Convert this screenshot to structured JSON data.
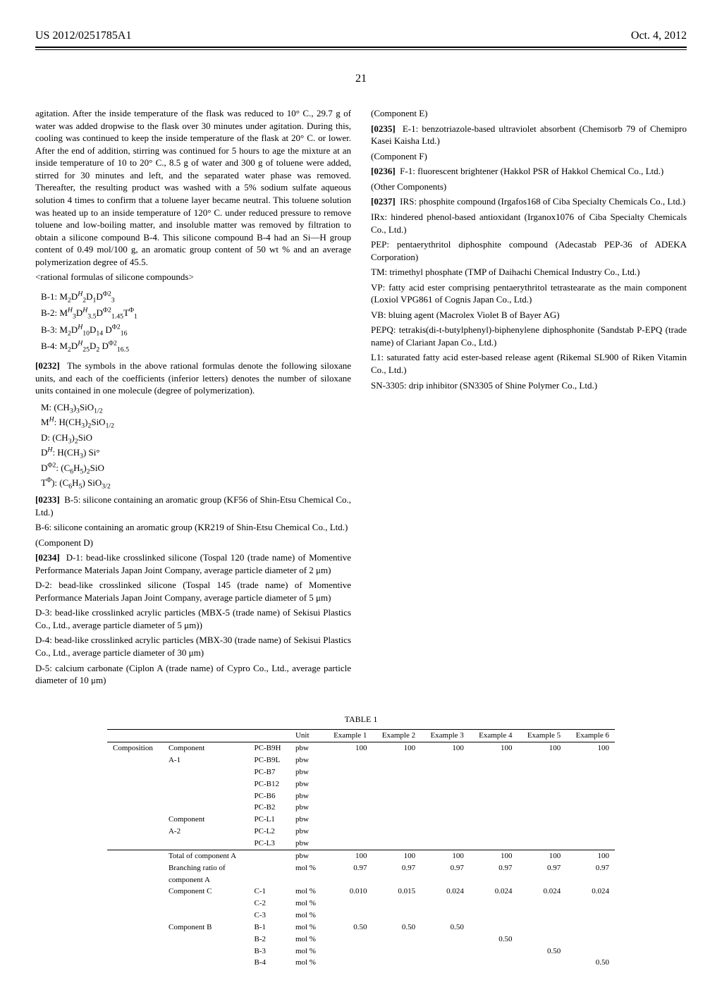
{
  "header": {
    "left": "US 2012/0251785A1",
    "right": "Oct. 4, 2012"
  },
  "page_number": "21",
  "col1": {
    "p1": "agitation. After the inside temperature of the flask was reduced to 10° C., 29.7 g of water was added dropwise to the flask over 30 minutes under agitation. During this, cooling was continued to keep the inside temperature of the flask at 20° C. or lower. After the end of addition, stirring was continued for 5 hours to age the mixture at an inside temperature of 10 to 20° C., 8.5 g of water and 300 g of toluene were added, stirred for 30 minutes and left, and the separated water phase was removed. Thereafter, the resulting product was washed with a 5% sodium sulfate aqueous solution 4 times to confirm that a toluene layer became neutral. This toluene solution was heated up to an inside temperature of 120° C. under reduced pressure to remove toluene and low-boiling matter, and insoluble matter was removed by filtration to obtain a silicone compound B-4. This silicone compound B-4 had an Si—H group content of 0.49 mol/100 g, an aromatic group content of 50 wt % and an average polymerization degree of 45.5.",
    "rational_head": "<rational formulas of silicone compounds>",
    "para32_num": "[0232]",
    "para32": "The symbols in the above rational formulas denote the following siloxane units, and each of the coefficients (inferior letters) denotes the number of siloxane units contained in one molecule (degree of polymerization)."
  },
  "col2": {
    "para33_num": "[0233]",
    "para33a": "B-5: silicone containing an aromatic group (KF56 of Shin-Etsu Chemical Co., Ltd.)",
    "para33b": "B-6: silicone containing an aromatic group (KR219 of Shin-Etsu Chemical Co., Ltd.)",
    "componentD_head": "(Component D)",
    "para34_num": "[0234]",
    "para34a": "D-1: bead-like crosslinked silicone (Tospal 120 (trade name) of Momentive Performance Materials Japan Joint Company, average particle diameter of 2 μm)",
    "para34b": "D-2: bead-like crosslinked silicone (Tospal 145 (trade name) of Momentive Performance Materials Japan Joint Company, average particle diameter of 5 μm)",
    "para34c": "D-3: bead-like crosslinked acrylic particles (MBX-5 (trade name) of Sekisui Plastics Co., Ltd., average particle diameter of 5 μm))",
    "para34d": "D-4: bead-like crosslinked acrylic particles (MBX-30 (trade name) of Sekisui Plastics Co., Ltd., average particle diameter of 30 μm)",
    "para34e": "D-5: calcium carbonate (Ciplon A (trade name) of Cypro Co., Ltd., average particle diameter of 10 μm)",
    "componentE_head": "(Component E)",
    "para35_num": "[0235]",
    "para35": "E-1: benzotriazole-based ultraviolet absorbent (Chemisorb 79 of Chemipro Kasei Kaisha Ltd.)",
    "componentF_head": "(Component F)",
    "para36_num": "[0236]",
    "para36": "F-1: fluorescent brightener (Hakkol PSR of Hakkol Chemical Co., Ltd.)",
    "other_head": "(Other Components)",
    "para37_num": "[0237]",
    "para37a": "IRS: phosphite compound (Irgafos168 of Ciba Specialty Chemicals Co., Ltd.)",
    "para37b": "IRx: hindered phenol-based antioxidant (Irganox1076 of Ciba Specialty Chemicals Co., Ltd.)",
    "para37c": "PEP: pentaerythritol diphosphite compound (Adecastab PEP-36 of ADEKA Corporation)",
    "para37d": "TM: trimethyl phosphate (TMP of Daihachi Chemical Industry Co., Ltd.)",
    "para37e": "VP: fatty acid ester comprising pentaerythritol tetrastearate as the main component (Loxiol VPG861 of Cognis Japan Co., Ltd.)",
    "para37f": "VB: bluing agent (Macrolex Violet B of Bayer AG)",
    "para37g": "PEPQ: tetrakis(di-t-butylphenyl)-biphenylene diphosphonite (Sandstab P-EPQ (trade name) of Clariant Japan Co., Ltd.)",
    "para37h": "L1: saturated fatty acid ester-based release agent (Rikemal SL900 of Riken Vitamin Co., Ltd.)",
    "para37i": "SN-3305: drip inhibitor (SN3305 of Shine Polymer Co., Ltd.)"
  },
  "table": {
    "caption": "TABLE 1",
    "unit_col": "Unit",
    "ex_cols": [
      "Example 1",
      "Example 2",
      "Example 3",
      "Example 4",
      "Example 5",
      "Example 6"
    ],
    "rows": [
      {
        "a": "Composition",
        "b": "Component",
        "c": "PC-B9H",
        "u": "pbw",
        "v": [
          "100",
          "100",
          "100",
          "100",
          "100",
          "100"
        ]
      },
      {
        "a": "",
        "b": "A-1",
        "c": "PC-B9L",
        "u": "pbw",
        "v": [
          "",
          "",
          "",
          "",
          "",
          ""
        ]
      },
      {
        "a": "",
        "b": "",
        "c": "PC-B7",
        "u": "pbw",
        "v": [
          "",
          "",
          "",
          "",
          "",
          ""
        ]
      },
      {
        "a": "",
        "b": "",
        "c": "PC-B12",
        "u": "pbw",
        "v": [
          "",
          "",
          "",
          "",
          "",
          ""
        ]
      },
      {
        "a": "",
        "b": "",
        "c": "PC-B6",
        "u": "pbw",
        "v": [
          "",
          "",
          "",
          "",
          "",
          ""
        ]
      },
      {
        "a": "",
        "b": "",
        "c": "PC-B2",
        "u": "pbw",
        "v": [
          "",
          "",
          "",
          "",
          "",
          ""
        ]
      },
      {
        "a": "",
        "b": "Component",
        "c": "PC-L1",
        "u": "pbw",
        "v": [
          "",
          "",
          "",
          "",
          "",
          ""
        ]
      },
      {
        "a": "",
        "b": "A-2",
        "c": "PC-L2",
        "u": "pbw",
        "v": [
          "",
          "",
          "",
          "",
          "",
          ""
        ]
      },
      {
        "a": "",
        "b": "",
        "c": "PC-L3",
        "u": "pbw",
        "v": [
          "",
          "",
          "",
          "",
          "",
          ""
        ]
      }
    ],
    "total_row": {
      "label": "Total of component A",
      "u": "pbw",
      "v": [
        "100",
        "100",
        "100",
        "100",
        "100",
        "100"
      ]
    },
    "branch_row": {
      "label": "Branching ratio of",
      "label2": "component A",
      "u": "mol %",
      "v": [
        "0.97",
        "0.97",
        "0.97",
        "0.97",
        "0.97",
        "0.97"
      ]
    },
    "compC": [
      {
        "b": "Component C",
        "c": "C-1",
        "u": "mol %",
        "v": [
          "0.010",
          "0.015",
          "0.024",
          "0.024",
          "0.024",
          "0.024"
        ]
      },
      {
        "b": "",
        "c": "C-2",
        "u": "mol %",
        "v": [
          "",
          "",
          "",
          "",
          "",
          ""
        ]
      },
      {
        "b": "",
        "c": "C-3",
        "u": "mol %",
        "v": [
          "",
          "",
          "",
          "",
          "",
          ""
        ]
      }
    ],
    "compB": [
      {
        "b": "Component B",
        "c": "B-1",
        "u": "mol %",
        "v": [
          "0.50",
          "0.50",
          "0.50",
          "",
          "",
          ""
        ]
      },
      {
        "b": "",
        "c": "B-2",
        "u": "mol %",
        "v": [
          "",
          "",
          "",
          "0.50",
          "",
          ""
        ]
      },
      {
        "b": "",
        "c": "B-3",
        "u": "mol %",
        "v": [
          "",
          "",
          "",
          "",
          "0.50",
          ""
        ]
      },
      {
        "b": "",
        "c": "B-4",
        "u": "mol %",
        "v": [
          "",
          "",
          "",
          "",
          "",
          "0.50"
        ]
      }
    ]
  }
}
